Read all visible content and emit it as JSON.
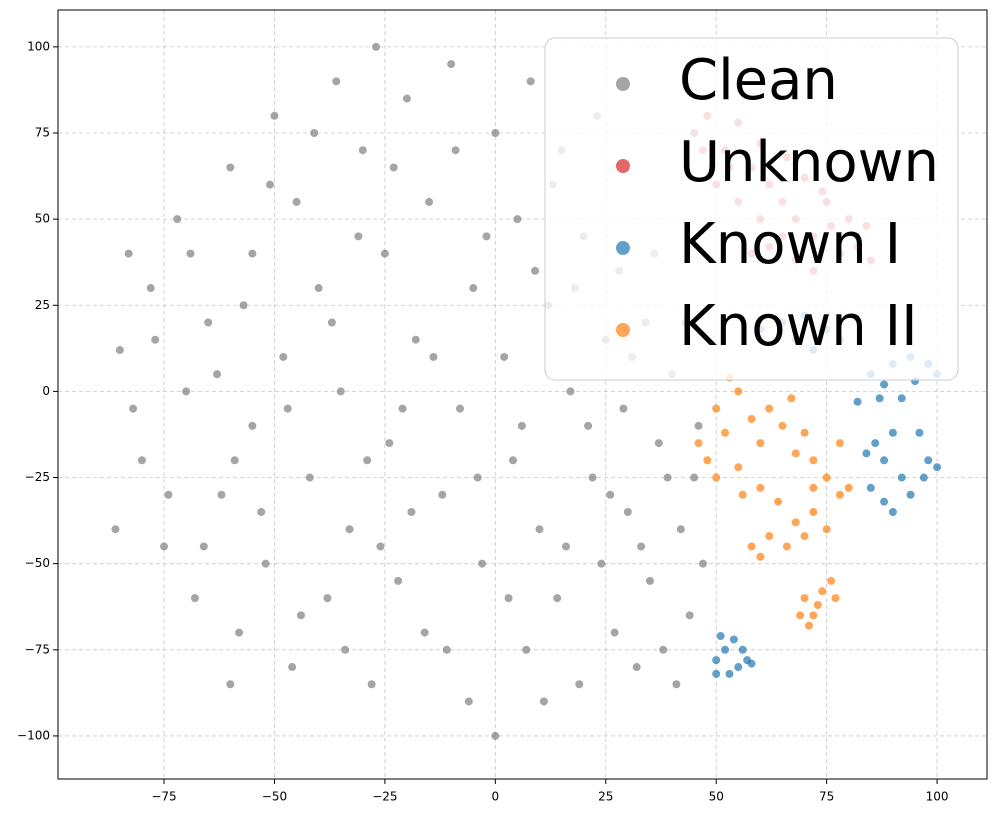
{
  "chart_data": {
    "type": "scatter",
    "xlim": [
      -99,
      111.3
    ],
    "ylim": [
      -112.5,
      110.7
    ],
    "xticks": [
      {
        "value": -75,
        "label": "−75"
      },
      {
        "value": -50,
        "label": "−50"
      },
      {
        "value": -25,
        "label": "−25"
      },
      0,
      25,
      50,
      75,
      100
    ],
    "yticks": [
      {
        "value": -100,
        "label": "−100"
      },
      {
        "value": -75,
        "label": "−75"
      },
      {
        "value": -50,
        "label": "−50"
      },
      {
        "value": -25,
        "label": "−25"
      },
      0,
      25,
      50,
      75,
      100
    ],
    "grid": true,
    "legend": "upper right",
    "series": [
      {
        "name": "Clean",
        "color": "#7f7f7f",
        "x": [
          -85,
          -80,
          -78,
          -75,
          -72,
          -70,
          -68,
          -65,
          -62,
          -60,
          -58,
          -55,
          -55,
          -52,
          -50,
          -48,
          -46,
          -45,
          -42,
          -40,
          -38,
          -36,
          -35,
          -33,
          -30,
          -28,
          -27,
          -25,
          -24,
          -22,
          -20,
          -18,
          -16,
          -15,
          -12,
          -10,
          -8,
          -6,
          -5,
          -3,
          0,
          0,
          2,
          4,
          5,
          7,
          8,
          10,
          12,
          14,
          15,
          17,
          19,
          20,
          22,
          24,
          25,
          27,
          29,
          30,
          32,
          34,
          35,
          37,
          38,
          40,
          42,
          44,
          45,
          47,
          -82,
          -77,
          -74,
          -69,
          -66,
          -63,
          -59,
          -57,
          -53,
          -51,
          -47,
          -44,
          -41,
          -37,
          -34,
          -31,
          -29,
          -26,
          -23,
          -21,
          -19,
          -14,
          -11,
          -9,
          -4,
          -2,
          3,
          6,
          9,
          11,
          13,
          16,
          18,
          21,
          23,
          26,
          28,
          31,
          33,
          36,
          39,
          41,
          43,
          46,
          -86,
          -83,
          -60
        ],
        "y": [
          12,
          -20,
          30,
          -45,
          50,
          0,
          -60,
          20,
          -30,
          65,
          -70,
          40,
          -10,
          -50,
          80,
          10,
          -80,
          55,
          -25,
          30,
          -60,
          90,
          0,
          -40,
          70,
          -85,
          100,
          40,
          -15,
          -55,
          85,
          15,
          -70,
          55,
          -30,
          95,
          -5,
          -90,
          30,
          -50,
          75,
          -100,
          10,
          -20,
          50,
          -75,
          90,
          -40,
          25,
          -60,
          70,
          0,
          -85,
          45,
          -25,
          -50,
          15,
          -70,
          -5,
          -35,
          -80,
          20,
          -55,
          -15,
          -75,
          5,
          -40,
          -65,
          -25,
          -50,
          -5,
          15,
          -30,
          40,
          -45,
          5,
          -20,
          25,
          -35,
          60,
          -5,
          -65,
          75,
          20,
          -75,
          45,
          -20,
          -45,
          65,
          -5,
          -35,
          10,
          -75,
          70,
          -25,
          45,
          -60,
          -10,
          35,
          -90,
          60,
          -45,
          30,
          -10,
          80,
          -30,
          35,
          10,
          -45,
          40,
          -25,
          -85,
          20,
          -10,
          -40,
          40,
          -85
        ]
      },
      {
        "name": "Unknown",
        "color": "#d62728",
        "x": [
          45,
          48,
          52,
          55,
          58,
          60,
          62,
          65,
          68,
          70,
          72,
          75,
          78,
          80,
          82,
          85,
          50,
          55,
          60,
          65,
          68,
          72,
          58,
          62,
          76,
          84,
          66,
          53,
          47,
          74
        ],
        "y": [
          75,
          80,
          70,
          78,
          65,
          72,
          60,
          55,
          50,
          62,
          45,
          55,
          40,
          50,
          42,
          38,
          60,
          55,
          50,
          45,
          38,
          35,
          40,
          42,
          48,
          48,
          68,
          65,
          70,
          58
        ]
      },
      {
        "name": "Known I",
        "color": "#1f77b4",
        "x": [
          85,
          88,
          90,
          92,
          95,
          98,
          100,
          87,
          94,
          82,
          60,
          65,
          70,
          75,
          78,
          72,
          68,
          86,
          88,
          90,
          85,
          88,
          92,
          90,
          94,
          96,
          98,
          100,
          97,
          84,
          50,
          52,
          54,
          55,
          57,
          53,
          51,
          56,
          50,
          58
        ],
        "y": [
          5,
          2,
          8,
          -2,
          3,
          8,
          5,
          -2,
          10,
          -3,
          18,
          20,
          22,
          18,
          15,
          12,
          15,
          -15,
          -20,
          -12,
          -28,
          -32,
          -25,
          -35,
          -30,
          -12,
          -20,
          -22,
          -25,
          -18,
          -78,
          -75,
          -72,
          -80,
          -78,
          -82,
          -71,
          -75,
          -82,
          -79
        ]
      },
      {
        "name": "Known II",
        "color": "#ff7f0e",
        "x": [
          50,
          52,
          55,
          58,
          60,
          62,
          65,
          68,
          70,
          72,
          75,
          78,
          80,
          48,
          50,
          55,
          60,
          64,
          68,
          70,
          72,
          75,
          58,
          60,
          62,
          66,
          78,
          46,
          53,
          56,
          67,
          72,
          70,
          72,
          74,
          76,
          77,
          69,
          71,
          73
        ],
        "y": [
          -5,
          -12,
          0,
          -8,
          -15,
          -5,
          -10,
          -18,
          -12,
          -20,
          -25,
          -15,
          -28,
          -20,
          -25,
          -22,
          -28,
          -32,
          -38,
          -42,
          -35,
          -40,
          -45,
          -48,
          -42,
          -45,
          -30,
          -15,
          4,
          -30,
          -2,
          -28,
          -60,
          -65,
          -58,
          -55,
          -60,
          -65,
          -68,
          -62
        ]
      }
    ]
  }
}
